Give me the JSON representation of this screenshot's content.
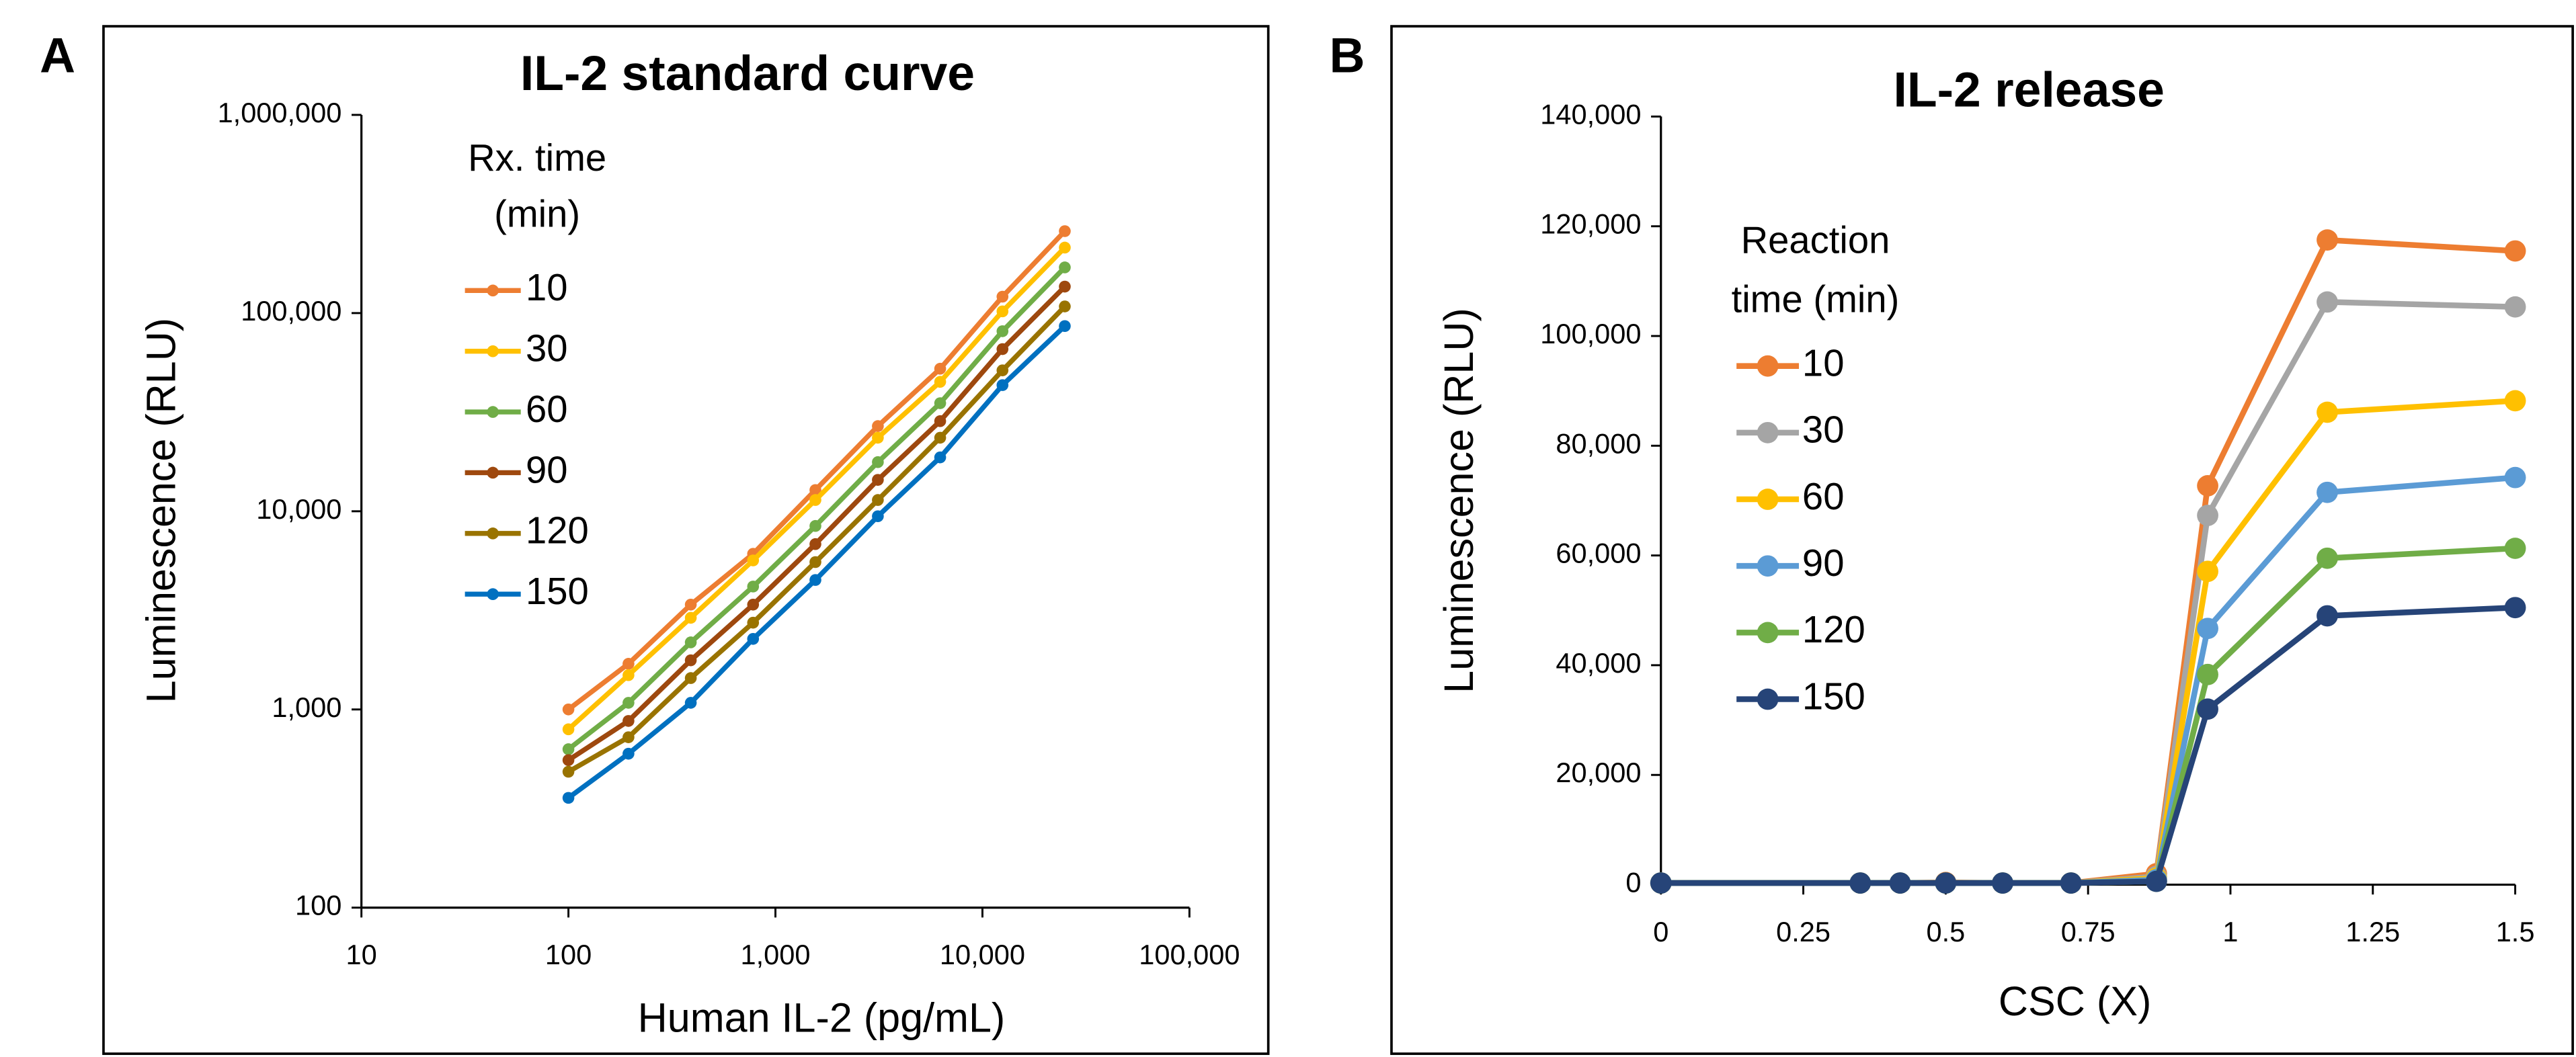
{
  "chart_data": [
    {
      "type": "line",
      "panel_label": "A",
      "title": "IL-2 standard curve",
      "x_label": "Human IL-2 (pg/mL)",
      "y_label": "Luminescence (RLU)",
      "legend_title": [
        "Rx. time",
        "(min)"
      ],
      "xscale": "log",
      "yscale": "log",
      "x": [
        100,
        195,
        390,
        780,
        1560,
        3125,
        6250,
        12500,
        25000
      ],
      "xlim": [
        10,
        100000
      ],
      "xticks": [
        10,
        100,
        {
          "value": 1000,
          "label": "1,000"
        },
        {
          "value": 10000,
          "label": "10,000"
        },
        {
          "value": 100000,
          "label": "100,000"
        }
      ],
      "ylim": [
        100,
        1000000
      ],
      "yticks": [
        100,
        {
          "value": 1000,
          "label": "1,000"
        },
        {
          "value": 10000,
          "label": "10,000"
        },
        {
          "value": 100000,
          "label": "100,000"
        },
        {
          "value": 1000000,
          "label": "1,000,000"
        }
      ],
      "series": [
        {
          "name": "10",
          "color": "#ed7d31",
          "values": [
            1000,
            1700,
            3380,
            6100,
            12800,
            26900,
            52400,
            121000,
            259000
          ]
        },
        {
          "name": "30",
          "color": "#ffc000",
          "values": [
            794,
            1490,
            2900,
            5650,
            11400,
            23500,
            45000,
            102000,
            214000
          ]
        },
        {
          "name": "60",
          "color": "#70ad47",
          "values": [
            630,
            1080,
            2180,
            4170,
            8430,
            17700,
            35100,
            81000,
            170000
          ]
        },
        {
          "name": "90",
          "color": "#9e480e",
          "values": [
            555,
            875,
            1770,
            3380,
            6830,
            14400,
            28500,
            65800,
            136000
          ]
        },
        {
          "name": "120",
          "color": "#997300",
          "values": [
            485,
            724,
            1440,
            2740,
            5540,
            11400,
            23500,
            51400,
            108000
          ]
        },
        {
          "name": "150",
          "color": "#0070c0",
          "values": [
            358,
            598,
            1080,
            2270,
            4500,
            9440,
            18700,
            43300,
            86000
          ]
        }
      ]
    },
    {
      "type": "line",
      "panel_label": "B",
      "title": "IL-2 release",
      "x_label": "CSC (X)",
      "y_label": "Luminescence (RLU)",
      "legend_title": [
        "Reaction",
        "time (min)"
      ],
      "x": [
        0,
        0.35,
        0.42,
        0.5,
        0.6,
        0.72,
        0.87,
        0.96,
        1.17,
        1.5
      ],
      "xlim": [
        0,
        1.5
      ],
      "xticks": [
        0,
        0.25,
        0.5,
        0.75,
        1,
        1.25,
        1.5
      ],
      "ylim": [
        0,
        140000
      ],
      "yticks": [
        0,
        {
          "value": 20000,
          "label": "20,000"
        },
        {
          "value": 40000,
          "label": "40,000"
        },
        {
          "value": 60000,
          "label": "60,000"
        },
        {
          "value": 80000,
          "label": "80,000"
        },
        {
          "value": 100000,
          "label": "100,000"
        },
        {
          "value": 120000,
          "label": "120,000"
        },
        {
          "value": 140000,
          "label": "140,000"
        }
      ],
      "series": [
        {
          "name": "10",
          "color": "#ed7d31",
          "values": [
            300,
            300,
            300,
            400,
            300,
            300,
            2000,
            72700,
            117500,
            115500
          ]
        },
        {
          "name": "30",
          "color": "#a5a5a5",
          "values": [
            300,
            300,
            300,
            300,
            300,
            300,
            1500,
            67300,
            106200,
            105300
          ]
        },
        {
          "name": "60",
          "color": "#ffc000",
          "values": [
            300,
            300,
            300,
            300,
            300,
            300,
            1200,
            57100,
            86100,
            88200
          ]
        },
        {
          "name": "90",
          "color": "#5b9bd5",
          "values": [
            300,
            300,
            300,
            300,
            300,
            300,
            900,
            46700,
            71500,
            74200
          ]
        },
        {
          "name": "120",
          "color": "#70ad47",
          "values": [
            300,
            300,
            300,
            300,
            300,
            300,
            600,
            38300,
            59500,
            61300
          ]
        },
        {
          "name": "150",
          "color": "#264478",
          "values": [
            300,
            300,
            300,
            300,
            300,
            300,
            600,
            32000,
            49000,
            50500
          ]
        }
      ]
    }
  ]
}
